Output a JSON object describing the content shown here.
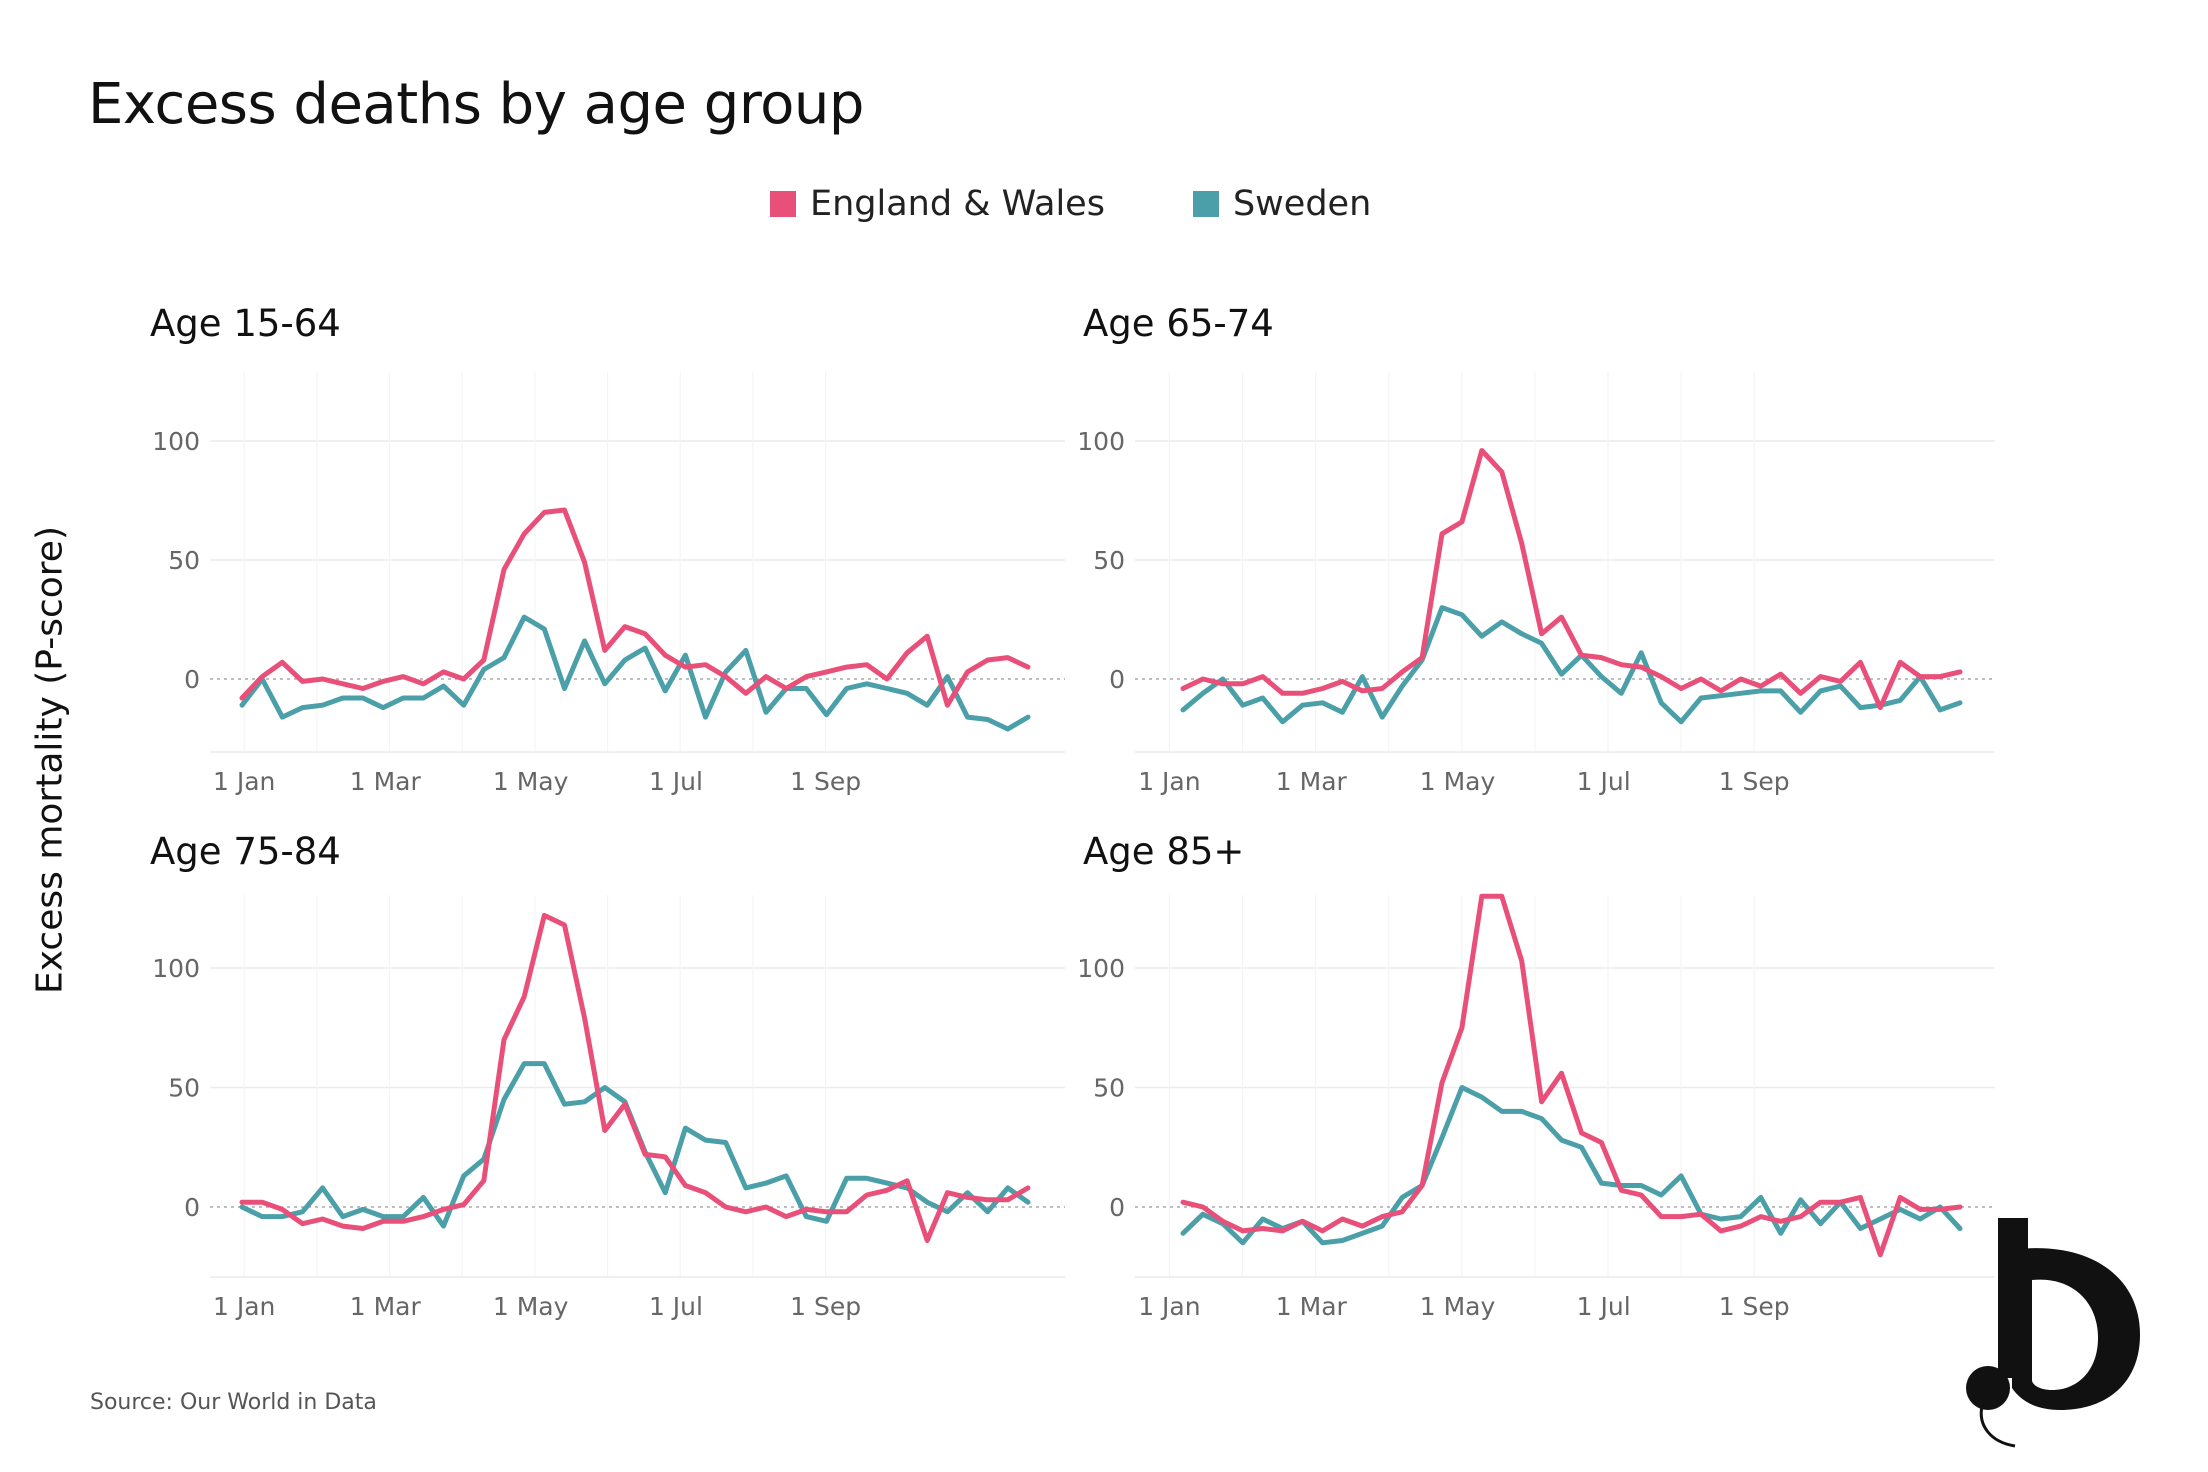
{
  "title": "Excess deaths by age group",
  "y_axis_label": "Excess mortality (P-score)",
  "source": "Source: Our World in Data",
  "legend": [
    {
      "label": "England & Wales",
      "color": "#e8507a"
    },
    {
      "label": "Sweden",
      "color": "#4a9fa8"
    }
  ],
  "chart_data": [
    {
      "type": "line",
      "title": "Age 15-64",
      "x_ticks": [
        "1 Jan",
        "1 Mar",
        "1 May",
        "1 Jul",
        "1 Sep"
      ],
      "y_ticks": [
        "100",
        "50",
        "0"
      ],
      "ylim": [
        -28,
        130
      ],
      "series": [
        {
          "name": "England & Wales",
          "values": [
            -8,
            1,
            7,
            -1,
            0,
            -2,
            -4,
            -1,
            1,
            -2,
            3,
            0,
            8,
            46,
            61,
            70,
            71,
            49,
            12,
            22,
            19,
            10,
            5,
            6,
            1,
            -6,
            1,
            -4,
            1,
            3,
            5,
            6,
            0,
            11,
            18,
            -11,
            3,
            8,
            9,
            5
          ]
        },
        {
          "name": "Sweden",
          "values": [
            -11,
            0,
            -16,
            -12,
            -11,
            -8,
            -8,
            -12,
            -8,
            -8,
            -3,
            -11,
            4,
            9,
            26,
            21,
            -4,
            16,
            -2,
            8,
            13,
            -5,
            10,
            -16,
            3,
            12,
            -14,
            -4,
            -4,
            -15,
            -4,
            -2,
            -4,
            -6,
            -11,
            1,
            -16,
            -17,
            -21,
            -16
          ]
        }
      ]
    },
    {
      "type": "line",
      "title": "Age 65-74",
      "x_ticks": [
        "1 Jan",
        "1 Mar",
        "1 May",
        "1 Jul",
        "1 Sep"
      ],
      "y_ticks": [
        "100",
        "50",
        "0"
      ],
      "ylim": [
        -28,
        130
      ],
      "series": [
        {
          "name": "England & Wales",
          "values": [
            -4,
            0,
            -2,
            -2,
            1,
            -6,
            -6,
            -4,
            -1,
            -5,
            -4,
            3,
            9,
            61,
            66,
            96,
            87,
            57,
            19,
            26,
            10,
            9,
            6,
            5,
            1,
            -4,
            0,
            -5,
            0,
            -3,
            2,
            -6,
            1,
            -1,
            7,
            -12,
            7,
            1,
            1,
            3
          ]
        },
        {
          "name": "Sweden",
          "values": [
            -13,
            -6,
            0,
            -11,
            -8,
            -18,
            -11,
            -10,
            -14,
            1,
            -16,
            -3,
            8,
            30,
            27,
            18,
            24,
            19,
            15,
            2,
            10,
            1,
            -6,
            11,
            -10,
            -18,
            -8,
            -7,
            -6,
            -5,
            -5,
            -14,
            -5,
            -3,
            -12,
            -11,
            -9,
            1,
            -13,
            -10
          ]
        }
      ]
    },
    {
      "type": "line",
      "title": "Age 75-84",
      "x_ticks": [
        "1 Jan",
        "1 Mar",
        "1 May",
        "1 Jul",
        "1 Sep"
      ],
      "y_ticks": [
        "100",
        "50",
        "0"
      ],
      "ylim": [
        -28,
        130
      ],
      "series": [
        {
          "name": "England & Wales",
          "values": [
            2,
            2,
            -1,
            -7,
            -5,
            -8,
            -9,
            -6,
            -6,
            -4,
            -1,
            1,
            11,
            70,
            88,
            122,
            118,
            79,
            32,
            43,
            22,
            21,
            9,
            6,
            0,
            -2,
            0,
            -4,
            -1,
            -2,
            -2,
            5,
            7,
            11,
            -14,
            6,
            4,
            3,
            3,
            8
          ]
        },
        {
          "name": "Sweden",
          "values": [
            0,
            -4,
            -4,
            -2,
            8,
            -4,
            -1,
            -4,
            -4,
            4,
            -8,
            13,
            20,
            45,
            60,
            60,
            43,
            44,
            50,
            44,
            23,
            6,
            33,
            28,
            27,
            8,
            10,
            13,
            -4,
            -6,
            12,
            12,
            10,
            8,
            2,
            -2,
            6,
            -2,
            8,
            2
          ]
        }
      ]
    },
    {
      "type": "line",
      "title": "Age 85+",
      "x_ticks": [
        "1 Jan",
        "1 Mar",
        "1 May",
        "1 Jul",
        "1 Sep"
      ],
      "y_ticks": [
        "100",
        "50",
        "0"
      ],
      "ylim": [
        -28,
        130
      ],
      "series": [
        {
          "name": "England & Wales",
          "values": [
            2,
            0,
            -6,
            -10,
            -9,
            -10,
            -6,
            -10,
            -5,
            -8,
            -4,
            -2,
            9,
            52,
            75,
            130,
            130,
            103,
            44,
            56,
            31,
            27,
            7,
            5,
            -4,
            -4,
            -3,
            -10,
            -8,
            -4,
            -6,
            -4,
            2,
            2,
            4,
            -20,
            4,
            -1,
            -1,
            0
          ]
        },
        {
          "name": "Sweden",
          "values": [
            -11,
            -3,
            -7,
            -15,
            -5,
            -9,
            -6,
            -15,
            -14,
            -11,
            -8,
            4,
            9,
            29,
            50,
            46,
            40,
            40,
            37,
            28,
            25,
            10,
            9,
            9,
            5,
            13,
            -3,
            -5,
            -4,
            4,
            -11,
            3,
            -7,
            2,
            -9,
            -5,
            -1,
            -5,
            0,
            -9
          ]
        }
      ]
    }
  ]
}
